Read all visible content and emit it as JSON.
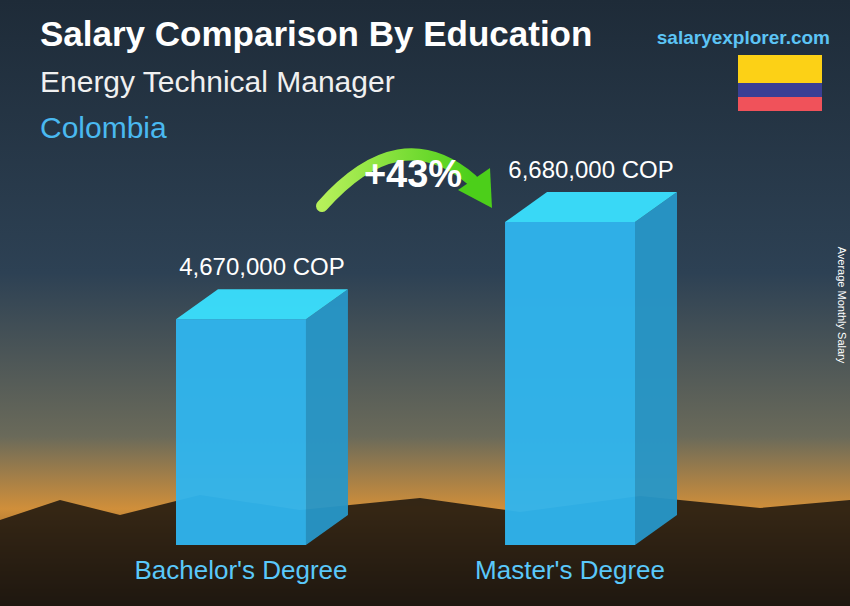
{
  "chart_data": {
    "type": "bar",
    "title": "Salary Comparison By Education",
    "subtitle": "Energy Technical Manager",
    "country": "Colombia",
    "source": "salaryexplorer.com",
    "y_label": "Average Monthly Salary",
    "annotation": "+43%",
    "categories": [
      "Bachelor's Degree",
      "Master's Degree"
    ],
    "values": [
      4670000,
      6680000
    ],
    "value_labels": [
      "4,670,000 COP",
      "6,680,000 COP"
    ],
    "color": "#2fb5ef",
    "data_labels": true,
    "tick_labels": "x"
  }
}
